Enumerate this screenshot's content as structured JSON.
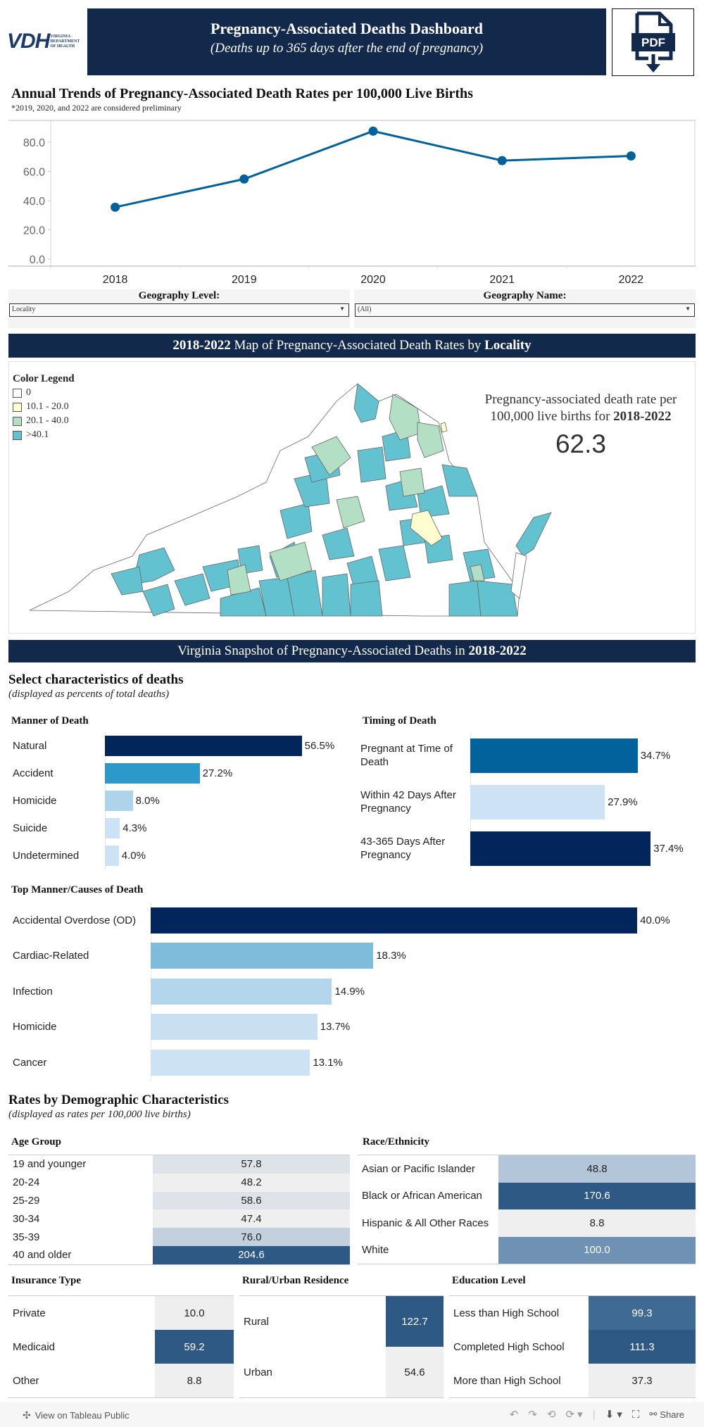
{
  "header": {
    "logo_text": "VDH",
    "logo_subtext": [
      "VIRGINIA",
      "DEPARTMENT",
      "OF HEALTH"
    ],
    "title": "Pregnancy-Associated Deaths Dashboard",
    "subtitle": "(Deaths up to 365 days after the end of pregnancy)",
    "pdf_label": "PDF",
    "brand_color": "#13294b"
  },
  "trend": {
    "title": "Annual Trends of Pregnancy-Associated Death Rates per 100,000 Live Births",
    "note": "*2019, 2020, and 2022 are considered preliminary"
  },
  "chart_data": {
    "type": "line",
    "title": "Annual Trends of Pregnancy-Associated Death Rates per 100,000 Live Births",
    "xlabel": "",
    "ylabel": "",
    "x": [
      "2018",
      "2019",
      "2020",
      "2021",
      "2022"
    ],
    "series": [
      {
        "name": "Rate per 100,000 live births",
        "values": [
          35.5,
          54.8,
          87.6,
          67.4,
          70.6
        ],
        "color": "#00629b"
      }
    ],
    "ylim": [
      0,
      95
    ],
    "yticks": [
      "0.0",
      "20.0",
      "40.0",
      "60.0",
      "80.0"
    ],
    "ytick_values": [
      0,
      20,
      40,
      60,
      80
    ],
    "grid": false,
    "legend": "none"
  },
  "filters": {
    "geo_level": {
      "label": "Geography Level:",
      "value": "Locality"
    },
    "geo_name": {
      "label": "Geography Name:",
      "value": "(All)"
    }
  },
  "map": {
    "header_prefix": "2018-2022",
    "header_middle": " Map of Pregnancy-Associated Death Rates by ",
    "header_suffix": "Locality",
    "legend_title": "Color Legend",
    "legend": [
      {
        "label": "0",
        "color": "#ffffff"
      },
      {
        "label": "10.1 - 20.0",
        "color": "#fefdd0"
      },
      {
        "label": "20.1 - 40.0",
        "color": "#b3e0c4"
      },
      {
        "label": ">40.1",
        "color": "#62c2d0"
      }
    ],
    "rate_label_1": "Pregnancy-associated death rate per 100,000 live births for ",
    "rate_label_years": "2018-2022",
    "rate_value": "62.3"
  },
  "snapshot": {
    "header_prefix": "Virginia Snapshot of Pregnancy-Associated Deaths in ",
    "header_years": "2018-2022",
    "title": "Select characteristics of deaths",
    "subtitle": "(displayed as percents of total deaths)",
    "manner": {
      "title": "Manner of Death",
      "items": [
        {
          "label": "Natural",
          "value": 56.5,
          "display": "56.5%",
          "color": "#02255c"
        },
        {
          "label": "Accident",
          "value": 27.2,
          "display": "27.2%",
          "color": "#2b9aca"
        },
        {
          "label": "Homicide",
          "value": 8.0,
          "display": "8.0%",
          "color": "#aed4ec"
        },
        {
          "label": "Suicide",
          "value": 4.3,
          "display": "4.3%",
          "color": "#cde2f4"
        },
        {
          "label": "Undetermined",
          "value": 4.0,
          "display": "4.0%",
          "color": "#cde2f4"
        }
      ]
    },
    "timing": {
      "title": "Timing of Death",
      "items": [
        {
          "label": "Pregnant at Time of Death",
          "value": 34.7,
          "display": "34.7%",
          "color": "#02629b"
        },
        {
          "label": "Within 42 Days After Pregnancy",
          "value": 27.9,
          "display": "27.9%",
          "color": "#cde2f4"
        },
        {
          "label": "43-365 Days After Pregnancy",
          "value": 37.4,
          "display": "37.4%",
          "color": "#02255c"
        }
      ]
    },
    "causes": {
      "title": "Top Manner/Causes of Death",
      "items": [
        {
          "label": "Accidental Overdose (OD)",
          "value": 40.0,
          "display": "40.0%",
          "color": "#02255c"
        },
        {
          "label": "Cardiac-Related",
          "value": 18.3,
          "display": "18.3%",
          "color": "#7fbcdb"
        },
        {
          "label": "Infection",
          "value": 14.9,
          "display": "14.9%",
          "color": "#b3d6ec"
        },
        {
          "label": "Homicide",
          "value": 13.7,
          "display": "13.7%",
          "color": "#c9dff2"
        },
        {
          "label": "Cancer",
          "value": 13.1,
          "display": "13.1%",
          "color": "#cde2f4"
        }
      ]
    }
  },
  "demographics": {
    "title": "Rates by Demographic Characteristics",
    "subtitle": "(displayed as rates per 100,000 live births)",
    "age": {
      "title": "Age Group",
      "rows": [
        {
          "label": "19 and younger",
          "value": "57.8",
          "bg": "#dee3ea",
          "fg": "#222"
        },
        {
          "label": "20-24",
          "value": "48.2",
          "bg": "#efefef",
          "fg": "#222"
        },
        {
          "label": "25-29",
          "value": "58.6",
          "bg": "#dee3ea",
          "fg": "#222"
        },
        {
          "label": "30-34",
          "value": "47.4",
          "bg": "#efefef",
          "fg": "#222"
        },
        {
          "label": "35-39",
          "value": "76.0",
          "bg": "#c3d0de",
          "fg": "#222"
        },
        {
          "label": "40 and older",
          "value": "204.6",
          "bg": "#2e5985",
          "fg": "#fff"
        }
      ]
    },
    "race": {
      "title": "Race/Ethnicity",
      "rows": [
        {
          "label": "Asian or Pacific Islander",
          "value": "48.8",
          "bg": "#b3c5d8",
          "fg": "#222"
        },
        {
          "label": "Black or African American",
          "value": "170.6",
          "bg": "#2e5985",
          "fg": "#fff"
        },
        {
          "label": "Hispanic & All Other Races",
          "value": "8.8",
          "bg": "#efefef",
          "fg": "#222"
        },
        {
          "label": "White",
          "value": "100.0",
          "bg": "#6f91b3",
          "fg": "#fff"
        }
      ]
    },
    "insurance": {
      "title": "Insurance Type",
      "rows": [
        {
          "label": "Private",
          "value": "10.0",
          "bg": "#eeeeee",
          "fg": "#222"
        },
        {
          "label": "Medicaid",
          "value": "59.2",
          "bg": "#2e5985",
          "fg": "#fff"
        },
        {
          "label": "Other",
          "value": "8.8",
          "bg": "#efefef",
          "fg": "#222"
        }
      ]
    },
    "residence": {
      "title": "Rural/Urban Residence",
      "rows": [
        {
          "label": "Rural",
          "value": "122.7",
          "bg": "#2e5985",
          "fg": "#fff"
        },
        {
          "label": "Urban",
          "value": "54.6",
          "bg": "#efefef",
          "fg": "#222"
        }
      ]
    },
    "education": {
      "title": "Education Level",
      "rows": [
        {
          "label": "Less than High School",
          "value": "99.3",
          "bg": "#3f6a94",
          "fg": "#fff"
        },
        {
          "label": "Completed High School",
          "value": "111.3",
          "bg": "#2e5985",
          "fg": "#fff"
        },
        {
          "label": "More than High School",
          "value": "37.3",
          "bg": "#efefef",
          "fg": "#222"
        }
      ]
    }
  },
  "footer": {
    "view_label": "View on Tableau Public",
    "share_label": "Share"
  }
}
